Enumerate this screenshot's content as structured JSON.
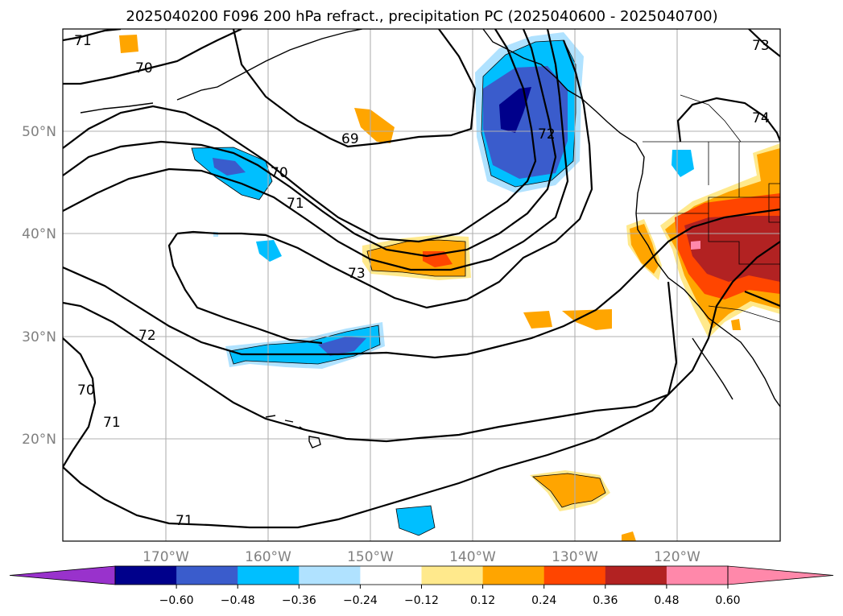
{
  "title": "2025040200 F096 200 hPa refract., precipitation PC (2025040600 - 2025040700)",
  "colors": {
    "below_min": "#9932cc",
    "bins": [
      "#00008b",
      "#3a5ccc",
      "#00bfff",
      "#b0e2ff",
      "#ffffff",
      "#ffe98c",
      "#ffa500",
      "#ff4500",
      "#b22222",
      "#ff88aa"
    ],
    "above_max": "#ff88aa"
  },
  "axes": {
    "lon_labels": [
      "170°W",
      "160°W",
      "150°W",
      "140°W",
      "130°W",
      "120°W"
    ],
    "lat_labels": [
      "50°N",
      "40°N",
      "30°N",
      "20°N"
    ]
  },
  "colorbar": {
    "ticks": [
      "−0.60",
      "−0.48",
      "−0.36",
      "−0.24",
      "−0.12",
      "0.12",
      "0.24",
      "0.36",
      "0.48",
      "0.60"
    ]
  },
  "contour_labels": [
    "71",
    "70",
    "69",
    "70",
    "71",
    "72",
    "73",
    "74",
    "73",
    "72",
    "70",
    "71",
    "71"
  ]
}
